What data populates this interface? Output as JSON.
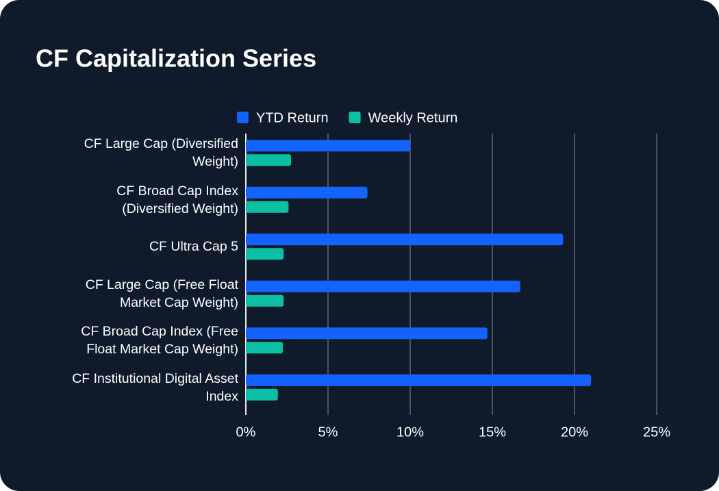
{
  "chart_data": {
    "type": "bar",
    "orientation": "horizontal",
    "title": "CF Capitalization Series",
    "categories": [
      "CF Large Cap (Diversified Weight)",
      "CF Broad Cap Index (Diversified Weight)",
      "CF Ultra Cap 5",
      "CF Large Cap (Free Float Market Cap Weight)",
      "CF Broad Cap Index (Free Float Market Cap Weight)",
      "CF Institutional Digital Asset Index"
    ],
    "series": [
      {
        "name": "YTD Return",
        "color": "#1463ff",
        "values": [
          10.0,
          7.4,
          19.3,
          16.7,
          14.7,
          21.0
        ]
      },
      {
        "name": "Weekly Return",
        "color": "#0bbfa5",
        "values": [
          2.75,
          2.6,
          2.3,
          2.3,
          2.25,
          1.95
        ]
      }
    ],
    "xlim": [
      0,
      25
    ],
    "xticks": [
      {
        "value": 0,
        "label": "0%"
      },
      {
        "value": 5,
        "label": "5%"
      },
      {
        "value": 10,
        "label": "10%"
      },
      {
        "value": 15,
        "label": "15%"
      },
      {
        "value": 20,
        "label": "20%"
      },
      {
        "value": 25,
        "label": "25%"
      }
    ],
    "grid": true,
    "legend": "top"
  }
}
